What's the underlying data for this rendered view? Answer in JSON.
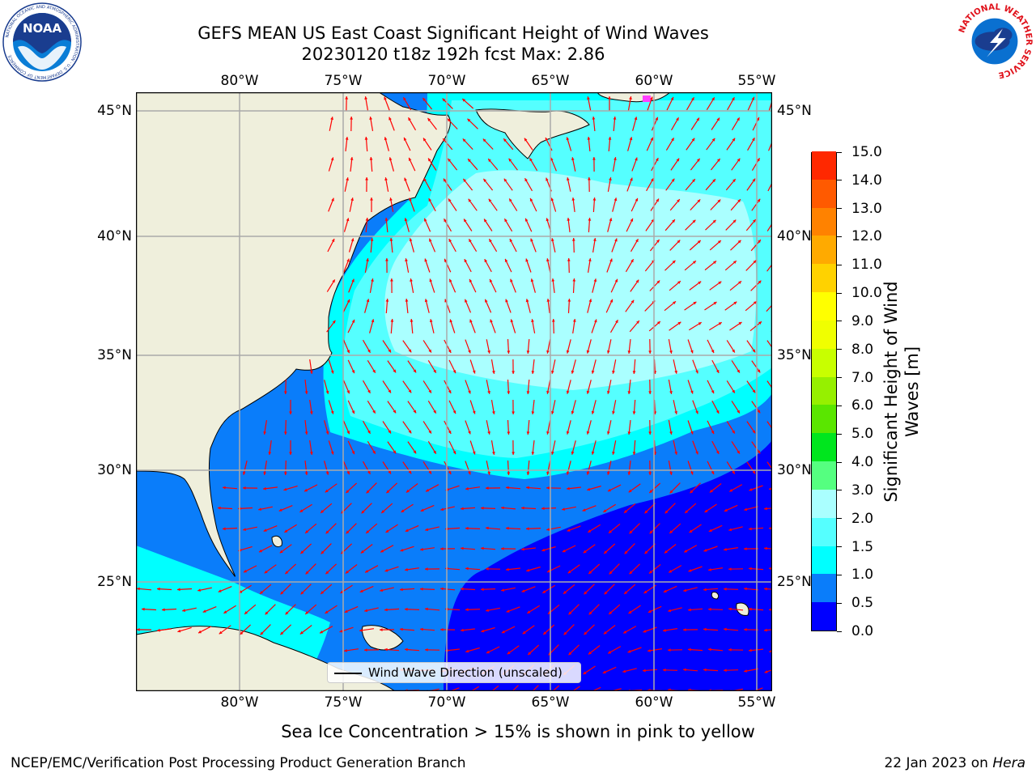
{
  "title": {
    "line1": "GEFS MEAN US East Coast Significant Height of Wind Waves",
    "line2": "20230120 t18z 192h fcst   Max: 2.86"
  },
  "map": {
    "lon_labels": [
      "80°W",
      "75°W",
      "70°W",
      "65°W",
      "60°W",
      "55°W"
    ],
    "lat_labels": [
      "45°N",
      "40°N",
      "35°N",
      "30°N",
      "25°N"
    ],
    "colors": {
      "land": "#efefdc",
      "band_0_0_5": "#0000ff",
      "band_0_5_1_0": "#0a7dfa",
      "band_1_0_1_5": "#00ffff",
      "band_1_5_2_0": "#55ffff",
      "band_2_0_3_0": "#aaffff",
      "arrow": "#ff0000",
      "grid": "#aaaaaa",
      "ice": "#ff40ff"
    },
    "legend_label": "Wind Wave Direction (unscaled)"
  },
  "colorbar": {
    "title_line1": "Significant Height of Wind",
    "title_line2": "Waves [m]",
    "tick_labels": [
      "0.0",
      "0.5",
      "1.0",
      "1.5",
      "2.0",
      "3.0",
      "4.0",
      "5.0",
      "6.0",
      "7.0",
      "8.0",
      "9.0",
      "10.0",
      "11.0",
      "12.0",
      "13.0",
      "14.0",
      "15.0"
    ],
    "segment_colors": [
      "#0000ff",
      "#0a7dfa",
      "#00ffff",
      "#55ffff",
      "#aaffff",
      "#55ff80",
      "#00e61e",
      "#5ae600",
      "#96f000",
      "#c8ff00",
      "#f0ff00",
      "#ffff00",
      "#ffd200",
      "#ffaa00",
      "#ff8200",
      "#ff5a00",
      "#ff2800"
    ]
  },
  "footer": {
    "note": "Sea Ice Concentration > 15% is shown in pink to yellow",
    "left": "NCEP/EMC/Verification Post Processing Product Generation Branch",
    "right_prefix": "22 Jan 2023 on ",
    "right_host": "Hera"
  },
  "logos": {
    "noaa": "NOAA",
    "noaa_ring": "NATIONAL OCEANIC AND ATMOSPHERIC ADMINISTRATION · U.S. DEPARTMENT OF COMMERCE",
    "nws_ring": "NATIONAL WEATHER SERVICE"
  }
}
